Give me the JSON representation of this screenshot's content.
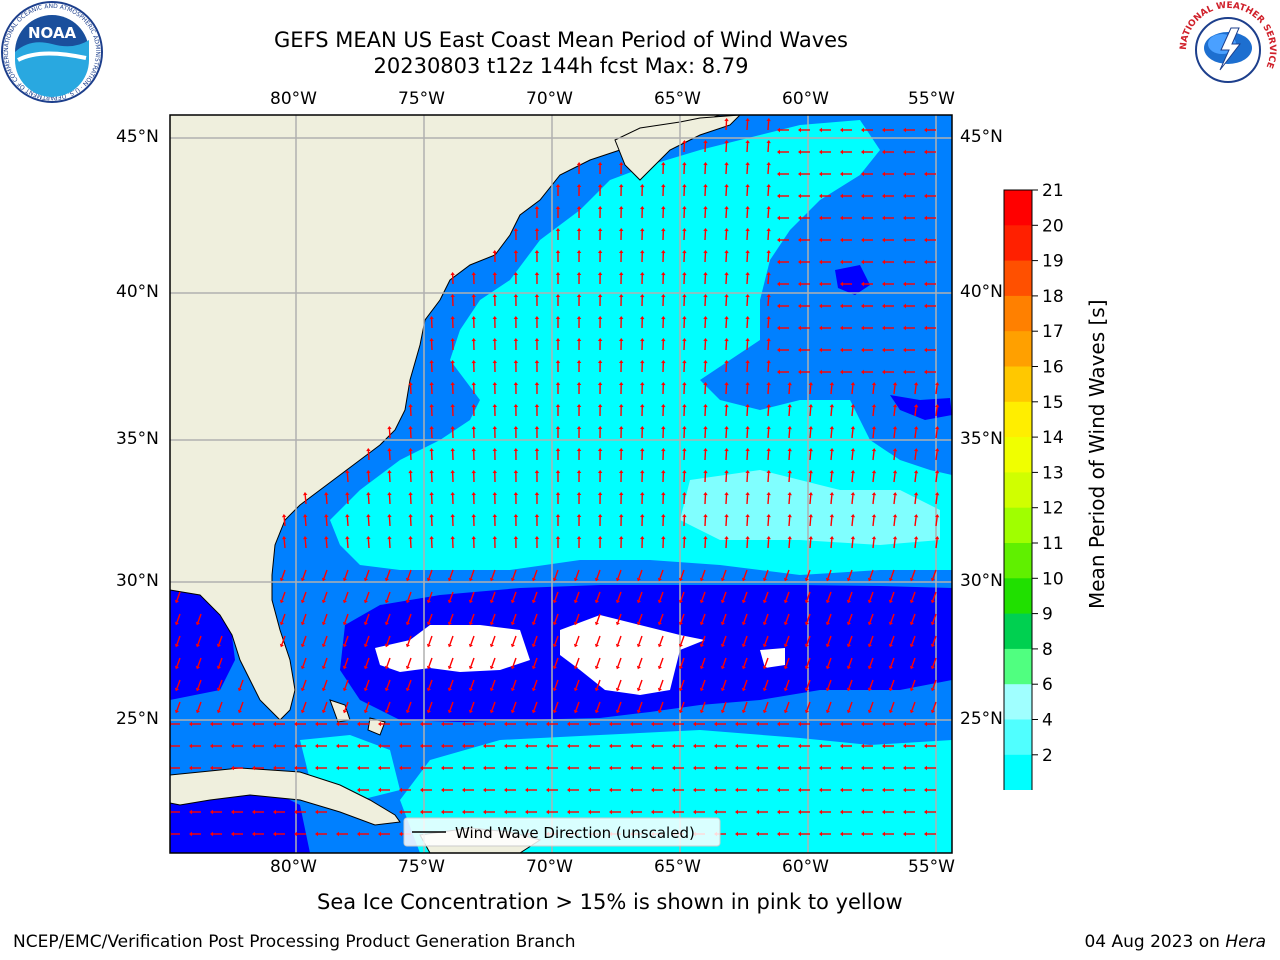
{
  "header": {
    "title_line1": "GEFS MEAN US East Coast Mean Period of Wind Waves",
    "title_line2": "20230803 t12z 144h fcst   Max: 8.79"
  },
  "logos": {
    "left": {
      "text": "NOAA",
      "ring_text": "NATIONAL OCEANIC AND ATMOSPHERIC ADMINISTRATION · U.S. DEPARTMENT OF COMMERCE"
    },
    "right": {
      "ring_text": "NATIONAL WEATHER SERVICE"
    }
  },
  "map": {
    "lon_labels": [
      "80°W",
      "75°W",
      "70°W",
      "65°W",
      "60°W",
      "55°W"
    ],
    "lat_labels": [
      "45°N",
      "40°N",
      "35°N",
      "30°N",
      "25°N"
    ],
    "legend_label": "Wind Wave Direction (unscaled)",
    "colors": {
      "land": "#efefdd",
      "band_2_4": "#0080ff",
      "band_below": "#0000ff",
      "band_4_6": "#00ffff",
      "band_6_8": "#80ffff",
      "arrow": "#ff0000",
      "grid": "#b0b0b0"
    }
  },
  "colorbar": {
    "label": "Mean Period of Wind Waves [s]",
    "ticks": [
      "21",
      "20",
      "19",
      "18",
      "17",
      "16",
      "15",
      "14",
      "13",
      "12",
      "11",
      "10",
      "9",
      "8",
      "6",
      "4",
      "2"
    ],
    "colors": [
      "#ff0000",
      "#ff2000",
      "#ff5000",
      "#ff8000",
      "#ffa000",
      "#ffc800",
      "#ffee00",
      "#f0ff00",
      "#d0ff00",
      "#a0ff00",
      "#60f000",
      "#20e000",
      "#00d050",
      "#50ff80",
      "#a0ffff",
      "#50ffff",
      "#00ffff",
      "#0080ff"
    ],
    "extend_color": "#0000ff"
  },
  "notes": {
    "sea_ice": "Sea Ice Concentration > 15% is shown in pink to yellow"
  },
  "footer": {
    "left": "NCEP/EMC/Verification Post Processing Product Generation Branch",
    "date": "04 Aug 2023 on ",
    "host": "Hera"
  }
}
